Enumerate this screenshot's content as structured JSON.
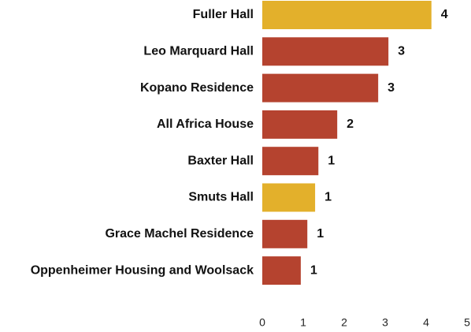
{
  "chart_data": {
    "type": "bar",
    "orientation": "horizontal",
    "categories": [
      "Fuller Hall",
      "Leo Marquard Hall",
      "Kopano Residence",
      "All Africa House",
      "Baxter Hall",
      "Smuts Hall",
      "Grace Machel Residence",
      "Oppenheimer Housing and Woolsack"
    ],
    "values": [
      4.13,
      3.08,
      2.83,
      1.83,
      1.37,
      1.29,
      1.1,
      0.94
    ],
    "value_labels": [
      "4",
      "3",
      "3",
      "2",
      "1",
      "1",
      "1",
      "1"
    ],
    "colors": [
      "#e3b02b",
      "#b5432f",
      "#b5432f",
      "#b5432f",
      "#b5432f",
      "#e3b02b",
      "#b5432f",
      "#b5432f"
    ],
    "xlim": [
      0,
      5
    ],
    "xticks": [
      0,
      1,
      2,
      3,
      4,
      5
    ],
    "grid": false
  }
}
